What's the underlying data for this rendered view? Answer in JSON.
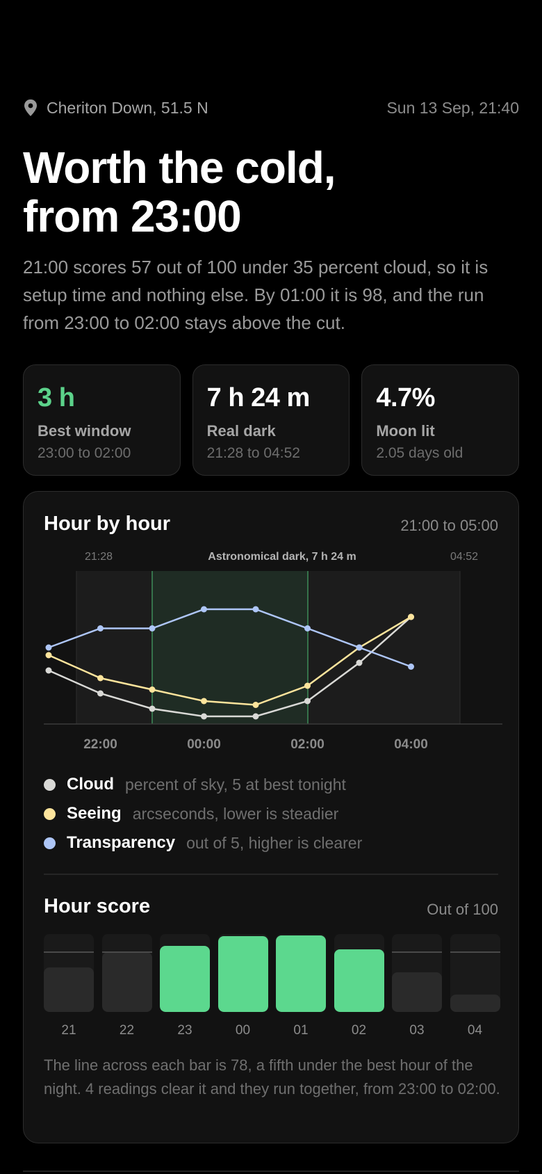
{
  "header": {
    "location": "Cheriton Down, 51.5 N",
    "location_icon": "map-pin-icon",
    "datetime": "Sun 13 Sep, 21:40"
  },
  "headline": {
    "line1": "Worth the cold,",
    "line2": "from 23:00"
  },
  "lede": "21:00 scores 57 out of 100 under 35 percent cloud, so it is setup time and nothing else. By 01:00 it is 98, and the run from 23:00 to 02:00 stays above the cut.",
  "stats": [
    {
      "value": "3 h",
      "label": "Best window",
      "sub": "23:00 to 02:00"
    },
    {
      "value": "7 h 24 m",
      "label": "Real dark",
      "sub": "21:28 to 04:52"
    },
    {
      "value": "4.7%",
      "label": "Moon lit",
      "sub": "2.05 days old"
    }
  ],
  "hourly": {
    "title": "Hour by hour",
    "range": "21:00 to 05:00",
    "dark_start_label": "21:28",
    "dark_end_label": "04:52",
    "dark_caption": "Astronomical dark, 7 h 24 m"
  },
  "legend": [
    {
      "name": "Cloud",
      "desc": "percent of sky, 5 at best tonight",
      "color": "#d9d9d6"
    },
    {
      "name": "Seeing",
      "desc": "arcseconds, lower is steadier",
      "color": "#fde49c"
    },
    {
      "name": "Transparency",
      "desc": "out of 5, higher is clearer",
      "color": "#aec6f7"
    }
  ],
  "score": {
    "title": "Hour score",
    "max_label": "Out of 100",
    "cut": 78,
    "note": "The line across each bar is 78, a fifth under the best hour of the night. 4 readings clear it and they run together, from 23:00 to 02:00."
  },
  "chart_data": [
    {
      "type": "line",
      "title": "Hour by hour",
      "x": [
        "21:00",
        "22:00",
        "23:00",
        "00:00",
        "01:00",
        "02:00",
        "03:00",
        "04:00"
      ],
      "x_ticks": [
        "22:00",
        "00:00",
        "02:00",
        "04:00"
      ],
      "shaded_region": {
        "label": "Astronomical dark, 7 h 24 m",
        "from": "21:28",
        "to": "04:52"
      },
      "best_window": {
        "from": "23:00",
        "to": "02:00"
      },
      "series": [
        {
          "name": "Cloud",
          "color": "#d9d9d6",
          "values": [
            35,
            20,
            10,
            5,
            5,
            15,
            40,
            70
          ]
        },
        {
          "name": "Seeing",
          "color": "#fde49c",
          "values": [
            1.9,
            1.6,
            1.45,
            1.3,
            1.25,
            1.5,
            2.0,
            2.4
          ]
        },
        {
          "name": "Transparency",
          "color": "#aec6f7",
          "values": [
            3.0,
            3.5,
            3.5,
            4.0,
            4.0,
            3.5,
            3.0,
            2.5
          ]
        }
      ],
      "grid": false
    },
    {
      "type": "bar",
      "title": "Hour score",
      "categories": [
        "21",
        "22",
        "23",
        "00",
        "01",
        "02",
        "03",
        "04"
      ],
      "values": [
        57,
        77,
        85,
        97,
        98,
        80,
        51,
        22
      ],
      "ylim": [
        0,
        100
      ],
      "threshold": 78,
      "highlight_color": "#5cd88e",
      "base_color": "#2a2a2a"
    }
  ]
}
